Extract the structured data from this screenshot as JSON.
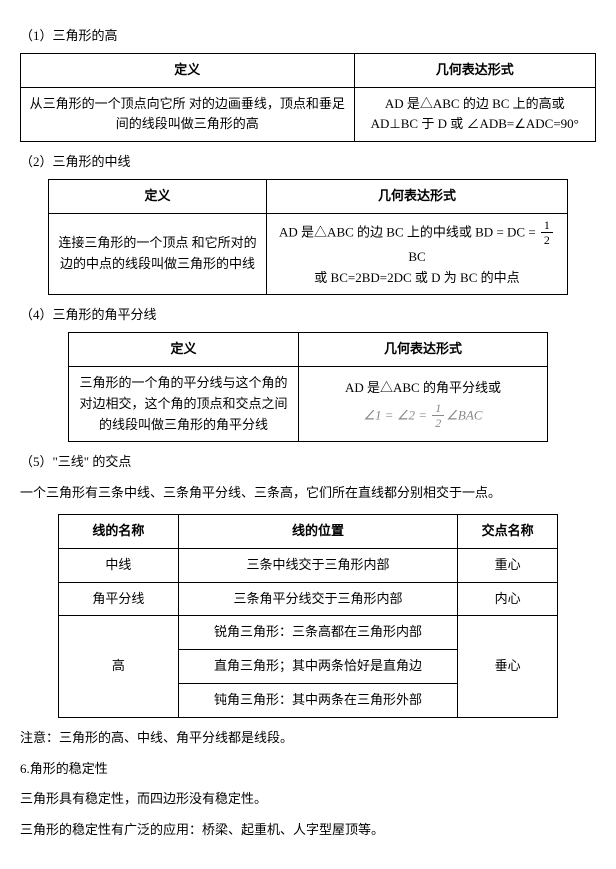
{
  "s1": {
    "title": "（1）三角形的高",
    "h1": "定义",
    "h2": "几何表达形式",
    "def": "从三角形的一个顶点向它所 对的边画垂线，顶点和垂足间的线段叫做三角形的高",
    "expr": "AD 是△ABC 的边 BC 上的高或 AD⊥BC 于 D 或 ∠ADB=∠ADC=90°"
  },
  "s2": {
    "title": "（2）三角形的中线",
    "h1": "定义",
    "h2": "几何表达形式",
    "def": "连接三角形的一个顶点 和它所对的边的中点的线段叫做三角形的中线",
    "expr_pre": "AD 是△ABC 的边 BC 上的中线或 BD = DC =",
    "expr_tail": " BC",
    "expr_line2": "或 BC=2BD=2DC 或 D 为 BC 的中点"
  },
  "s3": {
    "title": "（4）三角形的角平分线",
    "h1": "定义",
    "h2": "几何表达形式",
    "def": "三角形的一个角的平分线与这个角的对边相交，这个角的顶点和交点之间的线段叫做三角形的角平分线",
    "expr_line1": "AD 是△ABC 的角平分线或",
    "expr_eq_pre": "∠1 = ∠2 = ",
    "expr_eq_post": "∠BAC"
  },
  "s5": {
    "title": "（5）\"三线\" 的交点",
    "intro": "一个三角形有三条中线、三条角平分线、三条高，它们所在直线都分别相交于一点。",
    "h1": "线的名称",
    "h2": "线的位置",
    "h3": "交点名称",
    "r1c1": "中线",
    "r1c2": "三条中线交于三角形内部",
    "r1c3": "重心",
    "r2c1": "角平分线",
    "r2c2": "三条角平分线交于三角形内部",
    "r2c3": "内心",
    "r3c1": "高",
    "r3c2a": "锐角三角形：三条高都在三角形内部",
    "r3c2b": "直角三角形；其中两条恰好是直角边",
    "r3c2c": "钝角三角形：其中两条在三角形外部",
    "r3c3": "垂心"
  },
  "note": "注意：三角形的高、中线、角平分线都是线段。",
  "s6": {
    "title": "6.角形的稳定性",
    "p1": "三角形具有稳定性，而四边形没有稳定性。",
    "p2": "三角形的稳定性有广泛的应用：桥梁、起重机、人字型屋顶等。"
  },
  "frac": {
    "num": "1",
    "den": "2"
  }
}
